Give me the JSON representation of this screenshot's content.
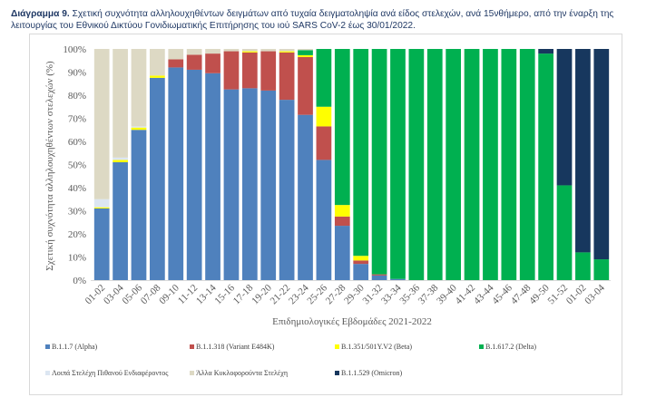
{
  "caption": {
    "label": "Διάγραμμα 9.",
    "text": " Σχετική συχνότητα αλληλουχηθέντων δειγμάτων από τυχαία δειγματοληψία ανά είδος στελεχών, ανά 15νθήμερο, από την έναρξη της λειτουργίας του Εθνικού Δικτύου Γονιδιωματικής Επιτήρησης του ιού SARS CoV-2 έως 30/01/2022."
  },
  "chart_data": {
    "type": "bar",
    "stacked": true,
    "percent_stacked": true,
    "title": "",
    "xlabel": "Επιδημιολογικές Εβδομάδες 2021-2022",
    "ylabel": "Σχετική συχνότητα αλληλουχηθέντων στελεχών (%)",
    "ylim": [
      0,
      100
    ],
    "yticks": [
      "0%",
      "10%",
      "20%",
      "30%",
      "40%",
      "50%",
      "60%",
      "70%",
      "80%",
      "90%",
      "100%"
    ],
    "grid": false,
    "legend_position": "bottom",
    "categories": [
      "01-02",
      "03-04",
      "05-06",
      "07-08",
      "09-10",
      "11-12",
      "13-14",
      "15-16",
      "17-18",
      "19-20",
      "21-22",
      "23-24",
      "25-26",
      "27-28",
      "29-30",
      "31-32",
      "33-34",
      "35-36",
      "37-38",
      "39-40",
      "41-42",
      "43-44",
      "45-46",
      "47-48",
      "49-50",
      "51-52",
      "01-02",
      "03-04"
    ],
    "series": [
      {
        "name": "B.1.1.7 (Alpha)",
        "color": "#4f81bd",
        "values": [
          31,
          51,
          65,
          87.5,
          92,
          91,
          89.5,
          82.5,
          83,
          82,
          78,
          71.5,
          52,
          23.5,
          7,
          2,
          0.5,
          0,
          0,
          0,
          0,
          0,
          0,
          0,
          0,
          0,
          0,
          0
        ]
      },
      {
        "name": "B.1.1.318 (Variant E484K)",
        "color": "#c0504d",
        "values": [
          0,
          0,
          0,
          0,
          3.5,
          6.5,
          8.5,
          16.5,
          15.5,
          17,
          20.5,
          25,
          14.5,
          4,
          1.5,
          0.5,
          0,
          0,
          0,
          0,
          0,
          0,
          0,
          0,
          0,
          0,
          0,
          0
        ]
      },
      {
        "name": "B.1.351/501Y.V2 (Beta)",
        "color": "#ffff00",
        "values": [
          0.5,
          1,
          1,
          1,
          0,
          0,
          0,
          0,
          0.5,
          0,
          0.5,
          0.8,
          8.5,
          5,
          2,
          0,
          0,
          0,
          0,
          0,
          0,
          0,
          0,
          0,
          0,
          0,
          0,
          0
        ]
      },
      {
        "name": "B.1.617.2 (Delta)",
        "color": "#00b050",
        "values": [
          0,
          0,
          0,
          0,
          0,
          0,
          0,
          0,
          0,
          0,
          0,
          2.2,
          25,
          67.5,
          89.5,
          97.5,
          99.5,
          100,
          100,
          100,
          100,
          100,
          100,
          100,
          98,
          41,
          12,
          9
        ]
      },
      {
        "name": "Λοιπά Στελέχη Πιθανού Ενδιαφέροντος",
        "color": "#dce6f2",
        "values": [
          3.5,
          1,
          0.5,
          0,
          0,
          0,
          0,
          0,
          0,
          0,
          0,
          0,
          0,
          0,
          0,
          0,
          0,
          0,
          0,
          0,
          0,
          0,
          0,
          0,
          0,
          0,
          0,
          0
        ]
      },
      {
        "name": "Άλλα Κυκλοφορούντα Στελέχη",
        "color": "#ddd9c4",
        "values": [
          65,
          47,
          33.5,
          11.5,
          4.5,
          2.5,
          2,
          1,
          1,
          1,
          1,
          0.5,
          0,
          0,
          0,
          0,
          0,
          0,
          0,
          0,
          0,
          0,
          0,
          0,
          0,
          0,
          0,
          0
        ]
      },
      {
        "name": "B.1.1.529 (Omicron)",
        "color": "#17375e",
        "values": [
          0,
          0,
          0,
          0,
          0,
          0,
          0,
          0,
          0,
          0,
          0,
          0,
          0,
          0,
          0,
          0,
          0,
          0,
          0,
          0,
          0,
          0,
          0,
          0,
          2,
          59,
          88,
          91
        ]
      }
    ]
  },
  "legend": {
    "row1": [
      "B.1.1.7 (Alpha)",
      "B.1.1.318 (Variant E484K)",
      "B.1.351/501Y.V2 (Beta)",
      "B.1.617.2 (Delta)"
    ],
    "row2": [
      "Λοιπά Στελέχη Πιθανού Ενδιαφέροντος",
      "Άλλα Κυκλοφορούντα Στελέχη",
      "B.1.1.529 (Omicron)"
    ]
  }
}
